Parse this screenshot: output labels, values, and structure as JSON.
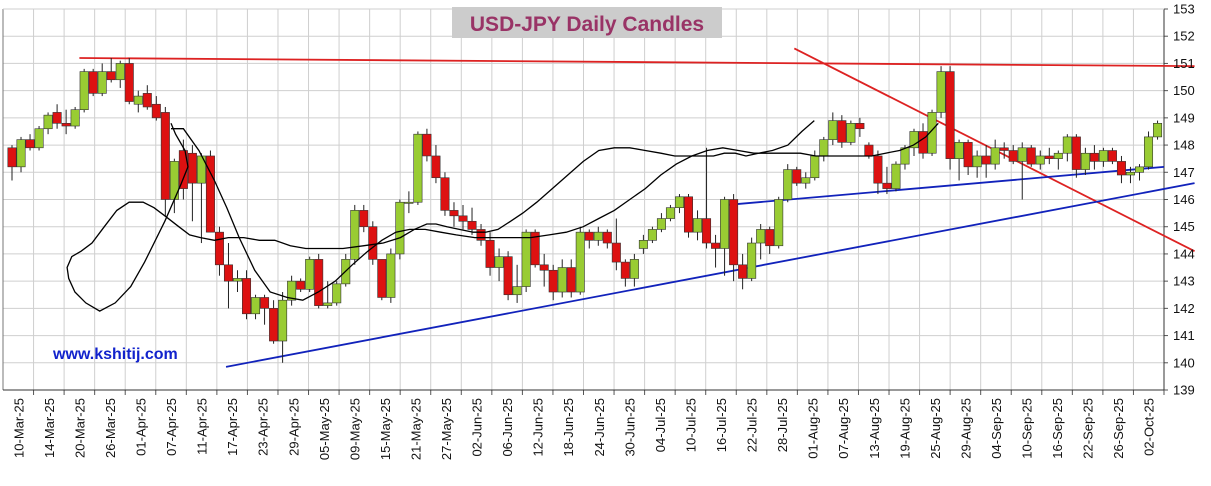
{
  "chart_data": {
    "type": "candlestick",
    "title": "USD-JPY Daily Candles",
    "watermark": "www.kshitij.com",
    "ylim": [
      139,
      153
    ],
    "y_ticks": [
      139,
      140,
      141,
      142,
      143,
      144,
      145,
      146,
      147,
      148,
      149,
      150,
      151,
      152,
      153
    ],
    "x_tick_labels": [
      "10-Mar-25",
      "14-Mar-25",
      "20-Mar-25",
      "26-Mar-25",
      "01-Apr-25",
      "07-Apr-25",
      "11-Apr-25",
      "17-Apr-25",
      "23-Apr-25",
      "29-Apr-25",
      "05-May-25",
      "09-May-25",
      "15-May-25",
      "21-May-25",
      "27-May-25",
      "02-Jun-25",
      "06-Jun-25",
      "12-Jun-25",
      "18-Jun-25",
      "24-Jun-25",
      "30-Jun-25",
      "04-Jul-25",
      "10-Jul-25",
      "16-Jul-25",
      "22-Jul-25",
      "28-Jul-25",
      "01-Aug-25",
      "07-Aug-25",
      "13-Aug-25",
      "19-Aug-25",
      "25-Aug-25",
      "29-Aug-25",
      "04-Sep-25",
      "10-Sep-25",
      "16-Sep-25",
      "22-Sep-25",
      "26-Sep-25",
      "02-Oct-25"
    ],
    "grid": true,
    "y_axis_side": "right",
    "colors": {
      "up": "#99cc33",
      "down": "#dd1111",
      "wick": "#222222",
      "grid": "#cfcfcf",
      "red_line": "#dd2222",
      "blue_line": "#1122bb",
      "ma": "#000000",
      "title_text": "#993366",
      "title_bg": "#cccccc",
      "watermark": "#1122cc"
    },
    "candles": [
      [
        147.9,
        148.0,
        146.7,
        147.2
      ],
      [
        147.2,
        148.3,
        147.0,
        148.2
      ],
      [
        148.2,
        148.4,
        147.8,
        147.9
      ],
      [
        147.9,
        148.7,
        147.8,
        148.6
      ],
      [
        148.6,
        149.2,
        148.4,
        149.1
      ],
      [
        149.2,
        149.5,
        148.6,
        148.8
      ],
      [
        148.8,
        149.3,
        148.4,
        148.7
      ],
      [
        148.7,
        149.4,
        148.6,
        149.3
      ],
      [
        149.3,
        150.8,
        149.2,
        150.7
      ],
      [
        150.7,
        150.8,
        149.8,
        149.9
      ],
      [
        149.9,
        151.0,
        149.8,
        150.7
      ],
      [
        150.7,
        151.2,
        150.3,
        150.4
      ],
      [
        150.4,
        151.1,
        150.1,
        151.0
      ],
      [
        151.0,
        151.2,
        149.5,
        149.6
      ],
      [
        149.5,
        150.0,
        149.2,
        149.8
      ],
      [
        149.9,
        150.2,
        149.3,
        149.4
      ],
      [
        149.5,
        149.8,
        148.9,
        149.0
      ],
      [
        149.2,
        149.4,
        145.4,
        146.0
      ],
      [
        146.0,
        147.5,
        145.5,
        147.4
      ],
      [
        147.8,
        148.2,
        146.0,
        146.4
      ],
      [
        147.7,
        148.0,
        145.2,
        146.6
      ],
      [
        146.6,
        147.7,
        144.4,
        147.6
      ],
      [
        147.6,
        147.8,
        144.8,
        144.8
      ],
      [
        144.8,
        145.0,
        143.2,
        143.6
      ],
      [
        143.6,
        144.4,
        142.0,
        143.0
      ],
      [
        143.0,
        143.4,
        142.6,
        143.1
      ],
      [
        143.1,
        143.4,
        141.6,
        141.8
      ],
      [
        141.8,
        142.5,
        141.6,
        142.4
      ],
      [
        142.4,
        142.5,
        141.4,
        142.0
      ],
      [
        142.0,
        142.3,
        140.7,
        140.8
      ],
      [
        140.8,
        142.6,
        140.0,
        142.3
      ],
      [
        142.3,
        143.2,
        142.1,
        143.0
      ],
      [
        143.0,
        143.1,
        142.6,
        142.7
      ],
      [
        142.7,
        143.9,
        142.6,
        143.8
      ],
      [
        143.8,
        144.0,
        142.0,
        142.1
      ],
      [
        142.1,
        143.0,
        142.0,
        142.2
      ],
      [
        142.2,
        143.0,
        142.1,
        142.9
      ],
      [
        142.9,
        144.0,
        142.8,
        143.8
      ],
      [
        143.8,
        145.8,
        143.6,
        145.6
      ],
      [
        145.6,
        145.8,
        144.8,
        145.0
      ],
      [
        145.0,
        145.2,
        143.6,
        143.8
      ],
      [
        143.8,
        143.8,
        142.3,
        142.4
      ],
      [
        142.4,
        144.2,
        142.2,
        144.0
      ],
      [
        144.0,
        146.0,
        143.8,
        145.9
      ],
      [
        145.9,
        146.3,
        145.5,
        145.9
      ],
      [
        145.9,
        148.5,
        145.8,
        148.4
      ],
      [
        148.4,
        148.6,
        147.4,
        147.6
      ],
      [
        147.6,
        148.0,
        146.6,
        146.8
      ],
      [
        146.8,
        147.0,
        145.4,
        145.6
      ],
      [
        145.6,
        145.9,
        145.0,
        145.4
      ],
      [
        145.4,
        145.8,
        144.9,
        145.2
      ],
      [
        145.2,
        145.7,
        144.7,
        144.9
      ],
      [
        144.9,
        145.1,
        144.3,
        144.5
      ],
      [
        144.5,
        144.8,
        143.2,
        143.5
      ],
      [
        143.5,
        144.2,
        143.0,
        143.9
      ],
      [
        143.9,
        144.1,
        142.3,
        142.5
      ],
      [
        142.5,
        143.6,
        142.2,
        142.8
      ],
      [
        142.8,
        144.9,
        142.6,
        144.8
      ],
      [
        144.8,
        144.9,
        143.5,
        143.6
      ],
      [
        143.6,
        144.0,
        142.8,
        143.4
      ],
      [
        143.4,
        143.6,
        142.3,
        142.6
      ],
      [
        142.6,
        143.8,
        142.4,
        143.5
      ],
      [
        143.5,
        143.8,
        142.4,
        142.6
      ],
      [
        142.6,
        145.0,
        142.5,
        144.8
      ],
      [
        144.8,
        144.9,
        144.2,
        144.5
      ],
      [
        144.5,
        145.0,
        144.3,
        144.8
      ],
      [
        144.8,
        144.9,
        144.2,
        144.4
      ],
      [
        144.4,
        145.3,
        143.4,
        143.7
      ],
      [
        143.7,
        143.8,
        142.8,
        143.1
      ],
      [
        143.1,
        144.0,
        142.8,
        143.8
      ],
      [
        144.2,
        144.7,
        144.0,
        144.5
      ],
      [
        144.5,
        145.0,
        144.4,
        144.9
      ],
      [
        144.9,
        145.5,
        144.8,
        145.3
      ],
      [
        145.3,
        145.8,
        145.2,
        145.7
      ],
      [
        145.7,
        146.2,
        145.5,
        146.1
      ],
      [
        146.1,
        146.2,
        144.6,
        144.8
      ],
      [
        144.8,
        145.6,
        144.5,
        145.3
      ],
      [
        145.3,
        147.9,
        144.2,
        144.4
      ],
      [
        144.4,
        144.7,
        143.5,
        144.2
      ],
      [
        144.2,
        146.1,
        143.2,
        146.0
      ],
      [
        146.0,
        146.2,
        143.0,
        143.6
      ],
      [
        143.6,
        144.0,
        142.7,
        143.1
      ],
      [
        143.1,
        144.6,
        143.0,
        144.4
      ],
      [
        144.4,
        145.1,
        143.8,
        144.9
      ],
      [
        144.9,
        145.0,
        144.0,
        144.3
      ],
      [
        144.3,
        146.1,
        144.2,
        146.0
      ],
      [
        146.0,
        147.3,
        145.9,
        147.1
      ],
      [
        147.1,
        147.2,
        146.5,
        146.6
      ],
      [
        146.6,
        147.0,
        146.4,
        146.8
      ],
      [
        146.8,
        147.8,
        146.7,
        147.6
      ],
      [
        147.6,
        148.3,
        147.4,
        148.2
      ],
      [
        148.2,
        149.2,
        148.0,
        148.9
      ],
      [
        148.9,
        149.1,
        147.9,
        148.1
      ],
      [
        148.1,
        148.9,
        148.0,
        148.8
      ],
      [
        148.8,
        149.0,
        148.3,
        148.6
      ],
      [
        148.0,
        148.1,
        147.5,
        147.6
      ],
      [
        147.6,
        147.8,
        146.2,
        146.6
      ],
      [
        146.6,
        147.2,
        146.2,
        146.4
      ],
      [
        146.4,
        147.4,
        146.3,
        147.3
      ],
      [
        147.3,
        148.0,
        147.1,
        147.9
      ],
      [
        147.9,
        148.6,
        147.6,
        148.5
      ],
      [
        148.5,
        148.8,
        147.5,
        147.7
      ],
      [
        147.7,
        149.3,
        147.6,
        149.2
      ],
      [
        149.2,
        150.9,
        149.0,
        150.7
      ],
      [
        150.7,
        150.9,
        147.1,
        147.5
      ],
      [
        147.5,
        148.2,
        146.7,
        148.1
      ],
      [
        148.1,
        148.2,
        146.9,
        147.2
      ],
      [
        147.2,
        147.8,
        146.8,
        147.6
      ],
      [
        147.6,
        148.0,
        146.8,
        147.3
      ],
      [
        147.3,
        148.2,
        147.1,
        147.9
      ],
      [
        147.9,
        148.1,
        147.5,
        147.8
      ],
      [
        147.8,
        148.0,
        147.3,
        147.4
      ],
      [
        147.4,
        148.1,
        146.0,
        147.9
      ],
      [
        147.9,
        148.0,
        147.2,
        147.3
      ],
      [
        147.3,
        147.8,
        147.1,
        147.6
      ],
      [
        147.6,
        147.9,
        147.3,
        147.5
      ],
      [
        147.5,
        147.8,
        147.1,
        147.7
      ],
      [
        147.7,
        148.4,
        147.4,
        148.3
      ],
      [
        148.3,
        148.4,
        146.8,
        147.1
      ],
      [
        147.1,
        147.9,
        146.9,
        147.7
      ],
      [
        147.7,
        148.0,
        147.1,
        147.4
      ],
      [
        147.4,
        147.9,
        147.2,
        147.8
      ],
      [
        147.8,
        147.9,
        147.3,
        147.4
      ],
      [
        147.4,
        147.6,
        146.6,
        146.9
      ],
      [
        146.9,
        147.2,
        146.6,
        147.0
      ],
      [
        147.0,
        147.3,
        146.7,
        147.2
      ],
      [
        147.2,
        148.5,
        147.1,
        148.3
      ],
      [
        148.3,
        148.9,
        148.2,
        148.8
      ]
    ],
    "ma_short": [
      [
        148.9,
        148.8
      ],
      [
        149.2,
        148.4
      ],
      [
        149.8,
        147.8
      ],
      [
        150.0,
        147.2
      ],
      [
        149.5,
        146.5
      ],
      [
        148.5,
        145.2
      ],
      [
        147.2,
        143.7
      ],
      [
        146.3,
        142.8
      ],
      [
        145.3,
        142.2
      ],
      [
        144.3,
        141.9
      ],
      [
        143.4,
        142.2
      ],
      [
        142.7,
        142.6
      ],
      [
        142.3,
        143.1
      ],
      [
        142.2,
        143.5
      ],
      [
        142.5,
        143.9
      ],
      [
        143.1,
        144.1
      ],
      [
        143.8,
        144.4
      ],
      [
        144.6,
        145.0
      ],
      [
        145.4,
        145.6
      ],
      [
        146.2,
        145.9
      ],
      [
        147.1,
        145.9
      ],
      [
        147.8,
        145.7
      ],
      [
        148.5,
        145.4
      ],
      [
        149.4,
        145.0
      ],
      [
        150.1,
        144.7
      ],
      [
        150.8,
        144.6
      ],
      [
        151.7,
        144.5
      ],
      [
        152.6,
        144.6
      ],
      [
        153.6,
        144.6
      ],
      [
        154.6,
        144.5
      ],
      [
        155.6,
        144.5
      ],
      [
        156.6,
        144.3
      ],
      [
        157.6,
        144.2
      ],
      [
        158.8,
        144.2
      ],
      [
        160.0,
        144.2
      ],
      [
        161.3,
        144.3
      ],
      [
        162.6,
        144.4
      ],
      [
        163.7,
        144.6
      ],
      [
        164.6,
        144.9
      ],
      [
        165.4,
        145.1
      ],
      [
        166.0,
        145.1
      ],
      [
        166.7,
        145.0
      ],
      [
        167.5,
        144.9
      ],
      [
        168.4,
        144.8
      ],
      [
        169.2,
        144.8
      ],
      [
        170.0,
        144.9
      ],
      [
        170.8,
        145.2
      ],
      [
        171.6,
        145.5
      ],
      [
        172.5,
        145.9
      ],
      [
        173.5,
        146.4
      ],
      [
        174.5,
        146.9
      ],
      [
        175.5,
        147.4
      ],
      [
        176.5,
        147.8
      ],
      [
        177.5,
        147.9
      ],
      [
        178.5,
        147.9
      ],
      [
        179.5,
        147.8
      ],
      [
        180.5,
        147.7
      ],
      [
        181.4,
        147.6
      ],
      [
        182.3,
        147.6
      ],
      [
        183.1,
        147.6
      ],
      [
        183.9,
        147.6
      ],
      [
        184.6,
        147.7
      ],
      [
        185.3,
        147.7
      ],
      [
        186.0,
        147.6
      ],
      [
        186.8,
        147.7
      ],
      [
        187.7,
        147.8
      ],
      [
        188.7,
        148.0
      ],
      [
        189.6,
        148.5
      ],
      [
        190.4,
        148.9
      ]
    ],
    "ma_long": [
      [
        148.9,
        148.6
      ],
      [
        149.7,
        148.6
      ],
      [
        150.7,
        147.8
      ],
      [
        151.7,
        146.7
      ],
      [
        152.5,
        145.7
      ],
      [
        153.3,
        144.6
      ],
      [
        154.3,
        143.4
      ],
      [
        155.3,
        142.6
      ],
      [
        156.4,
        142.4
      ],
      [
        157.4,
        142.3
      ],
      [
        158.4,
        142.6
      ],
      [
        159.5,
        143.0
      ],
      [
        160.6,
        143.6
      ],
      [
        161.6,
        144.1
      ],
      [
        162.5,
        144.5
      ],
      [
        163.4,
        144.8
      ],
      [
        164.3,
        144.9
      ],
      [
        165.3,
        144.9
      ],
      [
        166.3,
        144.8
      ],
      [
        167.3,
        144.7
      ],
      [
        168.5,
        144.6
      ],
      [
        169.7,
        144.6
      ],
      [
        170.9,
        144.6
      ],
      [
        172.1,
        144.6
      ],
      [
        173.3,
        144.7
      ],
      [
        174.4,
        144.8
      ],
      [
        175.5,
        145.0
      ],
      [
        176.5,
        145.3
      ],
      [
        177.5,
        145.6
      ],
      [
        178.5,
        146.0
      ],
      [
        179.5,
        146.4
      ],
      [
        180.5,
        146.9
      ],
      [
        181.5,
        147.3
      ],
      [
        182.5,
        147.6
      ],
      [
        183.5,
        147.8
      ],
      [
        184.5,
        147.9
      ],
      [
        185.5,
        147.8
      ],
      [
        186.5,
        147.7
      ],
      [
        187.5,
        147.7
      ],
      [
        188.5,
        147.7
      ],
      [
        189.5,
        147.7
      ],
      [
        190.5,
        147.6
      ],
      [
        191.4,
        147.6
      ],
      [
        192.3,
        147.6
      ],
      [
        193.2,
        147.6
      ],
      [
        194.1,
        147.6
      ],
      [
        195.0,
        147.7
      ],
      [
        195.9,
        147.8
      ],
      [
        196.8,
        148.0
      ],
      [
        197.6,
        148.3
      ],
      [
        198.4,
        148.8
      ]
    ],
    "trendlines": [
      {
        "color": "red",
        "from": [
          2.5,
          151.2
        ],
        "to": [
          39.0,
          150.9
        ]
      },
      {
        "color": "red",
        "from": [
          25.9,
          151.55
        ],
        "to": [
          39.0,
          144.1
        ]
      },
      {
        "color": "blue",
        "from": [
          7.3,
          139.85
        ],
        "to": [
          39.0,
          146.6
        ]
      },
      {
        "color": "blue",
        "from": [
          23.7,
          145.8
        ],
        "to": [
          38.0,
          147.2
        ]
      }
    ]
  }
}
